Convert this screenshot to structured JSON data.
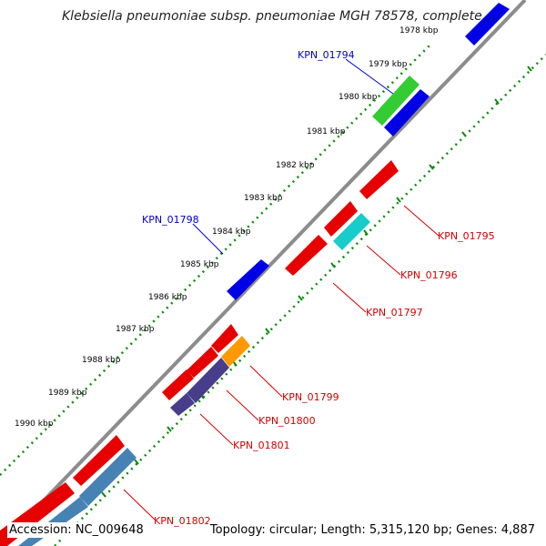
{
  "header": {
    "title": "Klebsiella pneumoniae subsp. pneumoniae MGH 78578, complete ..."
  },
  "footer": {
    "accession": "Accession: NC_009648",
    "summary": "Topology: circular; Length: 5,315,120 bp; Genes: 4,887"
  },
  "colors": {
    "backbone": "#8c8c8c",
    "ticks": "#0a8a0a",
    "forward_label": "#0000cc",
    "reverse_label": "#d40000"
  },
  "scale_labels": [
    "1978 kbp",
    "1979 kbp",
    "1980 kbp",
    "1981 kbp",
    "1982 kbp",
    "1983 kbp",
    "1984 kbp",
    "1985 kbp",
    "1986 kbp",
    "1987 kbp",
    "1988 kbp",
    "1989 kbp",
    "1990 kbp"
  ],
  "gene_labels": {
    "KPN_01794": "KPN_01794",
    "KPN_01795": "KPN_01795",
    "KPN_01796": "KPN_01796",
    "KPN_01797": "KPN_01797",
    "KPN_01798": "KPN_01798",
    "KPN_01799": "KPN_01799",
    "KPN_01800": "KPN_01800",
    "KPN_01801": "KPN_01801",
    "KPN_01802": "KPN_01802"
  }
}
